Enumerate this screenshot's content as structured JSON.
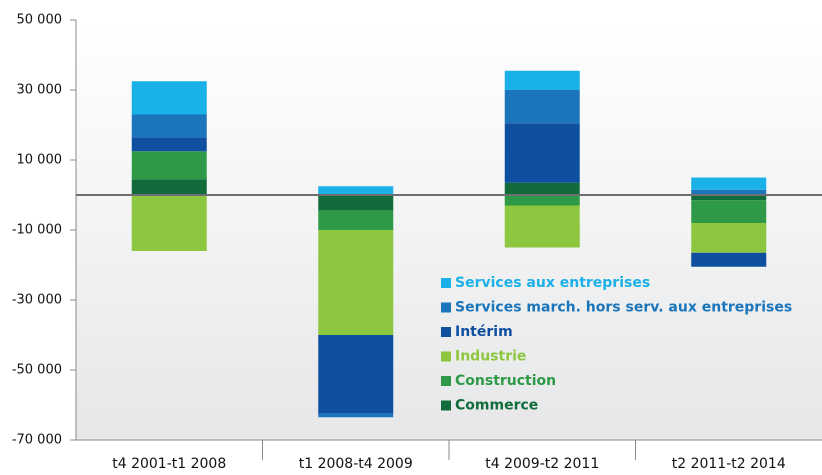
{
  "chart_data": {
    "type": "stacked_bar",
    "categories": [
      "t4 2001-t1 2008",
      "t1 2008-t4 2009",
      "t4 2009-t2 2011",
      "t2 2011-t2 2014"
    ],
    "series": [
      {
        "name": "Commerce",
        "color": "#116b3a",
        "values": [
          4500,
          -4500,
          3500,
          -1500
        ]
      },
      {
        "name": "Construction",
        "color": "#2e9a47",
        "values": [
          8000,
          -5500,
          -3000,
          -6500
        ]
      },
      {
        "name": "Industrie",
        "color": "#8dc63f",
        "values": [
          -16000,
          -30000,
          -12000,
          -8500
        ]
      },
      {
        "name": "Intérim",
        "color": "#0f4fa0",
        "values": [
          4000,
          -22500,
          17000,
          -4000
        ]
      },
      {
        "name": "Services march. hors serv. aux entreprises",
        "color": "#1a75bb",
        "values": [
          6500,
          -1000,
          9500,
          1500
        ]
      },
      {
        "name": "Services aux entreprises",
        "color": "#1ab0e8",
        "values": [
          9500,
          2500,
          5500,
          3500
        ]
      }
    ],
    "ylim": [
      -70000,
      50000
    ],
    "yticks": [
      {
        "value": -70000,
        "label": "-70 000"
      },
      {
        "value": -50000,
        "label": "-50 000"
      },
      {
        "value": -30000,
        "label": "-30 000"
      },
      {
        "value": -10000,
        "label": "-10 000"
      },
      {
        "value": 10000,
        "label": "10 000"
      },
      {
        "value": 30000,
        "label": "30 000"
      },
      {
        "value": 50000,
        "label": "50 000"
      }
    ],
    "legend": "inside"
  }
}
